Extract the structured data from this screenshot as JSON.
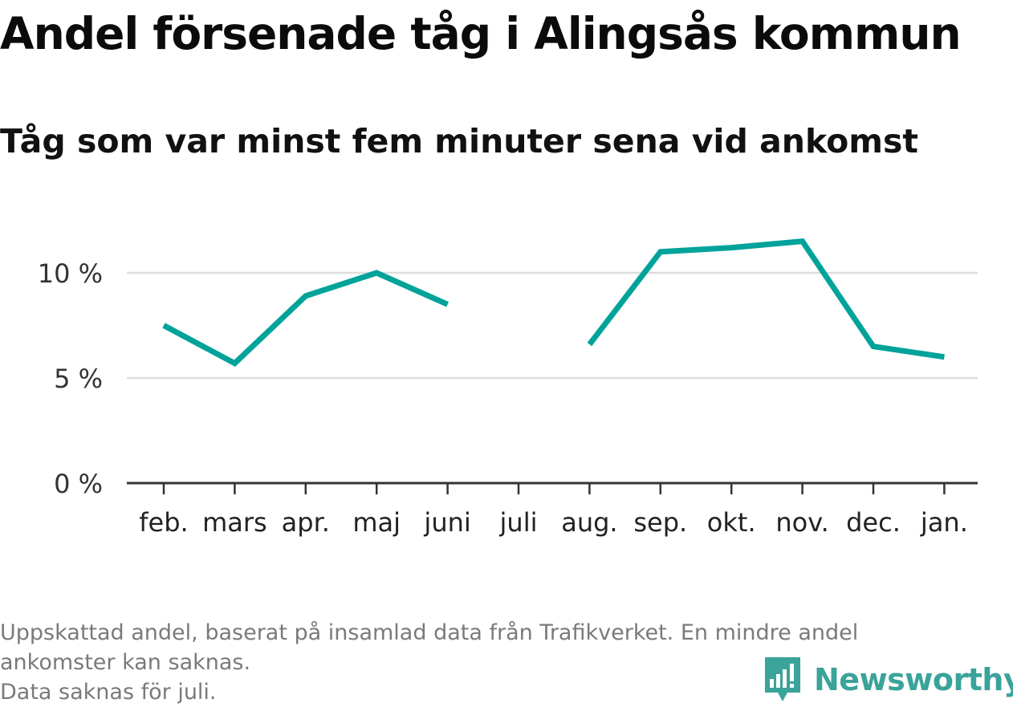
{
  "title": "Andel försenade tåg i Alingsås kommun",
  "subtitle": "Tåg som var minst fem minuter sena vid ankomst",
  "footnote": {
    "line1": "Uppskattad andel, baserat på insamlad data från Trafikverket. En mindre andel",
    "line2": "ankomster kan saknas.",
    "line3": "Data saknas för juli."
  },
  "brand": {
    "name": "Newsworthy",
    "icon": "newsworthy-logo-icon",
    "color": "#3aa39a"
  },
  "chart_data": {
    "type": "line",
    "categories": [
      "feb.",
      "mars",
      "apr.",
      "maj",
      "juni",
      "juli",
      "aug.",
      "sep.",
      "okt.",
      "nov.",
      "dec.",
      "jan."
    ],
    "series": [
      {
        "values": [
          7.5,
          5.7,
          8.9,
          10.0,
          8.5,
          null,
          6.6,
          11.0,
          11.2,
          11.5,
          6.5,
          6.0
        ],
        "color": "#00a39a"
      }
    ],
    "yticks": [
      0,
      5,
      10
    ],
    "ytick_labels": [
      "0 %",
      "5 %",
      "10 %"
    ],
    "ylim": [
      0,
      13
    ],
    "grid": true,
    "colors": {
      "grid": "#dddddd",
      "axis": "#333333",
      "line": "#00a39a"
    }
  }
}
